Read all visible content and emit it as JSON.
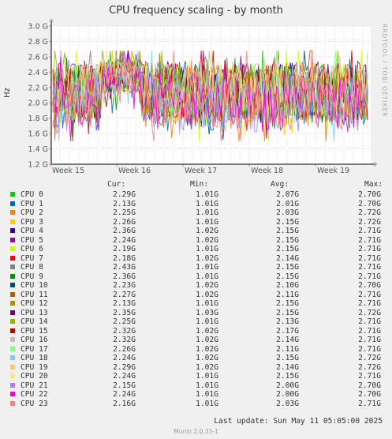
{
  "title": "CPU frequency scaling - by month",
  "side_label": "RRDTOOL / TOBI OETIKER",
  "footer": {
    "last_update": "Last update:  Sun May 11 05:05:00 2025",
    "munin": "Munin 2.0.33-1"
  },
  "legend_headers": {
    "cur": "Cur:",
    "min": "Min:",
    "avg": "Avg:",
    "max": "Max:"
  },
  "chart_data": {
    "type": "line",
    "ylabel": "Hz",
    "ylim": [
      1.2,
      3.0
    ],
    "y_ticks": [
      {
        "v": 3.0,
        "label": "3.0 G"
      },
      {
        "v": 2.8,
        "label": "2.8 G"
      },
      {
        "v": 2.6,
        "label": "2.6 G"
      },
      {
        "v": 2.4,
        "label": "2.4 G"
      },
      {
        "v": 2.2,
        "label": "2.2 G"
      },
      {
        "v": 2.0,
        "label": "2.0 G"
      },
      {
        "v": 1.8,
        "label": "1.8 G"
      },
      {
        "v": 1.6,
        "label": "1.6 G"
      },
      {
        "v": 1.4,
        "label": "1.4 G"
      },
      {
        "v": 1.2,
        "label": "1.2 G"
      }
    ],
    "x_ticks": [
      "Week 15",
      "Week 16",
      "Week 17",
      "Week 18",
      "Week 19"
    ],
    "series": [
      {
        "name": "CPU 0",
        "color": "#00cc00",
        "cur": "2.29G",
        "min": "1.01G",
        "avg": "2.07G",
        "max": "2.70G"
      },
      {
        "name": "CPU 1",
        "color": "#0066b3",
        "cur": "2.13G",
        "min": "1.01G",
        "avg": "2.01G",
        "max": "2.70G"
      },
      {
        "name": "CPU 2",
        "color": "#ff8000",
        "cur": "2.25G",
        "min": "1.01G",
        "avg": "2.03G",
        "max": "2.72G"
      },
      {
        "name": "CPU 3",
        "color": "#ffcc00",
        "cur": "2.26G",
        "min": "1.01G",
        "avg": "2.15G",
        "max": "2.72G"
      },
      {
        "name": "CPU 4",
        "color": "#330099",
        "cur": "2.36G",
        "min": "1.02G",
        "avg": "2.15G",
        "max": "2.71G"
      },
      {
        "name": "CPU 5",
        "color": "#990099",
        "cur": "2.24G",
        "min": "1.02G",
        "avg": "2.15G",
        "max": "2.71G"
      },
      {
        "name": "CPU 6",
        "color": "#ccff00",
        "cur": "2.19G",
        "min": "1.01G",
        "avg": "2.15G",
        "max": "2.71G"
      },
      {
        "name": "CPU 7",
        "color": "#ff0000",
        "cur": "2.18G",
        "min": "1.02G",
        "avg": "2.14G",
        "max": "2.71G"
      },
      {
        "name": "CPU 8",
        "color": "#808080",
        "cur": "2.43G",
        "min": "1.01G",
        "avg": "2.15G",
        "max": "2.71G"
      },
      {
        "name": "CPU 9",
        "color": "#008f00",
        "cur": "2.36G",
        "min": "1.01G",
        "avg": "2.15G",
        "max": "2.71G"
      },
      {
        "name": "CPU 10",
        "color": "#00487d",
        "cur": "2.23G",
        "min": "1.02G",
        "avg": "2.10G",
        "max": "2.70G"
      },
      {
        "name": "CPU 11",
        "color": "#b35a00",
        "cur": "2.27G",
        "min": "1.02G",
        "avg": "2.11G",
        "max": "2.71G"
      },
      {
        "name": "CPU 12",
        "color": "#b38f00",
        "cur": "2.13G",
        "min": "1.01G",
        "avg": "2.15G",
        "max": "2.71G"
      },
      {
        "name": "CPU 13",
        "color": "#6b006b",
        "cur": "2.35G",
        "min": "1.03G",
        "avg": "2.15G",
        "max": "2.72G"
      },
      {
        "name": "CPU 14",
        "color": "#8fb300",
        "cur": "2.25G",
        "min": "1.01G",
        "avg": "2.13G",
        "max": "2.71G"
      },
      {
        "name": "CPU 15",
        "color": "#b30000",
        "cur": "2.32G",
        "min": "1.02G",
        "avg": "2.17G",
        "max": "2.71G"
      },
      {
        "name": "CPU 16",
        "color": "#bebebe",
        "cur": "2.32G",
        "min": "1.02G",
        "avg": "2.14G",
        "max": "2.71G"
      },
      {
        "name": "CPU 17",
        "color": "#80ff80",
        "cur": "2.26G",
        "min": "1.02G",
        "avg": "2.11G",
        "max": "2.71G"
      },
      {
        "name": "CPU 18",
        "color": "#80c9ff",
        "cur": "2.24G",
        "min": "1.02G",
        "avg": "2.15G",
        "max": "2.72G"
      },
      {
        "name": "CPU 19",
        "color": "#ffc080",
        "cur": "2.29G",
        "min": "1.02G",
        "avg": "2.14G",
        "max": "2.72G"
      },
      {
        "name": "CPU 20",
        "color": "#ffe680",
        "cur": "2.24G",
        "min": "1.01G",
        "avg": "2.15G",
        "max": "2.71G"
      },
      {
        "name": "CPU 21",
        "color": "#aa80ff",
        "cur": "2.15G",
        "min": "1.01G",
        "avg": "2.00G",
        "max": "2.70G"
      },
      {
        "name": "CPU 22",
        "color": "#ee00cc",
        "cur": "2.24G",
        "min": "1.01G",
        "avg": "2.00G",
        "max": "2.70G"
      },
      {
        "name": "CPU 23",
        "color": "#ff8080",
        "cur": "2.16G",
        "min": "1.01G",
        "avg": "2.03G",
        "max": "2.71G"
      }
    ]
  }
}
